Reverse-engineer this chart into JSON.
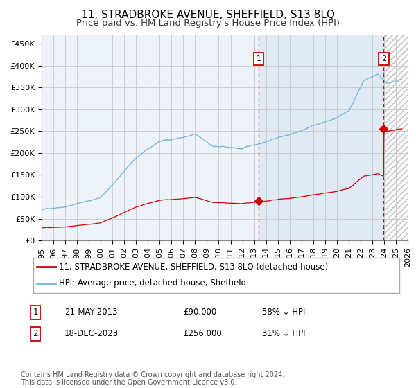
{
  "title": "11, STRADBROKE AVENUE, SHEFFIELD, S13 8LQ",
  "subtitle": "Price paid vs. HM Land Registry's House Price Index (HPI)",
  "xlim_start": 1995.0,
  "xlim_end": 2026.0,
  "ylim": [
    0,
    470000
  ],
  "yticks": [
    0,
    50000,
    100000,
    150000,
    200000,
    250000,
    300000,
    350000,
    400000,
    450000
  ],
  "ytick_labels": [
    "£0",
    "£50K",
    "£100K",
    "£150K",
    "£200K",
    "£250K",
    "£300K",
    "£350K",
    "£400K",
    "£450K"
  ],
  "transaction1_date": 2013.38,
  "transaction1_price": 90000,
  "transaction1_label": "1",
  "transaction1_display": "21-MAY-2013",
  "transaction1_price_display": "£90,000",
  "transaction1_pct": "58% ↓ HPI",
  "transaction2_date": 2023.96,
  "transaction2_price": 256000,
  "transaction2_label": "2",
  "transaction2_display": "18-DEC-2023",
  "transaction2_price_display": "£256,000",
  "transaction2_pct": "31% ↓ HPI",
  "hpi_color": "#7ab8d9",
  "price_color": "#cc0000",
  "background_color": "#ffffff",
  "plot_bg_color": "#eef3fa",
  "grid_color": "#c8c8c8",
  "legend1": "11, STRADBROKE AVENUE, SHEFFIELD, S13 8LQ (detached house)",
  "legend2": "HPI: Average price, detached house, Sheffield",
  "footer": "Contains HM Land Registry data © Crown copyright and database right 2024.\nThis data is licensed under the Open Government Licence v3.0.",
  "title_fontsize": 11,
  "subtitle_fontsize": 9.5,
  "tick_fontsize": 8,
  "legend_fontsize": 8.5,
  "footer_fontsize": 7
}
